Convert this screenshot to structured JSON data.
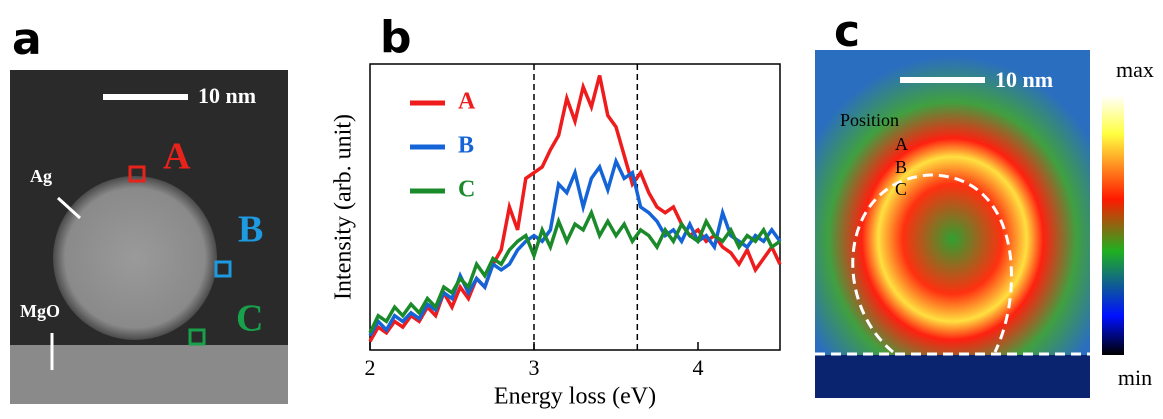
{
  "panel_a": {
    "label": "a",
    "scale_bar": "10 nm",
    "markers": [
      {
        "name": "A",
        "color": "#e8231c"
      },
      {
        "name": "B",
        "color": "#1e9be0"
      },
      {
        "name": "C",
        "color": "#18a04a"
      }
    ],
    "annotations": [
      "Ag",
      "MgO"
    ]
  },
  "chart_data": {
    "type": "line",
    "label": "b",
    "xlabel": "Energy loss (eV)",
    "ylabel": "Intensity (arb. unit)",
    "xlim": [
      2,
      4.5
    ],
    "xticks": [
      2,
      3,
      4
    ],
    "ylim": [
      0,
      1
    ],
    "vlines": [
      3.0,
      3.63
    ],
    "x": [
      2.0,
      2.05,
      2.1,
      2.15,
      2.2,
      2.25,
      2.3,
      2.35,
      2.4,
      2.45,
      2.5,
      2.55,
      2.6,
      2.65,
      2.7,
      2.75,
      2.8,
      2.85,
      2.9,
      2.95,
      3.0,
      3.05,
      3.1,
      3.15,
      3.2,
      3.25,
      3.3,
      3.35,
      3.4,
      3.45,
      3.5,
      3.55,
      3.6,
      3.65,
      3.7,
      3.75,
      3.8,
      3.85,
      3.9,
      3.95,
      4.0,
      4.05,
      4.1,
      4.15,
      4.2,
      4.25,
      4.3,
      4.35,
      4.4,
      4.45,
      4.5
    ],
    "series": [
      {
        "name": "A",
        "color": "#ee1c1c",
        "values": [
          0.03,
          0.08,
          0.06,
          0.1,
          0.08,
          0.12,
          0.1,
          0.15,
          0.12,
          0.2,
          0.15,
          0.22,
          0.18,
          0.25,
          0.22,
          0.3,
          0.35,
          0.5,
          0.42,
          0.6,
          0.62,
          0.64,
          0.7,
          0.75,
          0.88,
          0.8,
          0.92,
          0.85,
          0.96,
          0.82,
          0.78,
          0.68,
          0.58,
          0.62,
          0.55,
          0.5,
          0.48,
          0.5,
          0.44,
          0.4,
          0.42,
          0.38,
          0.4,
          0.36,
          0.34,
          0.3,
          0.35,
          0.28,
          0.32,
          0.36,
          0.3
        ]
      },
      {
        "name": "B",
        "color": "#1464d8",
        "values": [
          0.05,
          0.1,
          0.07,
          0.12,
          0.1,
          0.13,
          0.11,
          0.16,
          0.14,
          0.2,
          0.18,
          0.26,
          0.2,
          0.25,
          0.22,
          0.3,
          0.28,
          0.3,
          0.35,
          0.38,
          0.4,
          0.38,
          0.42,
          0.58,
          0.55,
          0.62,
          0.5,
          0.6,
          0.64,
          0.56,
          0.66,
          0.6,
          0.62,
          0.5,
          0.48,
          0.45,
          0.4,
          0.42,
          0.38,
          0.44,
          0.38,
          0.4,
          0.36,
          0.48,
          0.4,
          0.38,
          0.36,
          0.4,
          0.38,
          0.42,
          0.38
        ]
      },
      {
        "name": "C",
        "color": "#1a8a2a",
        "values": [
          0.06,
          0.12,
          0.1,
          0.15,
          0.12,
          0.16,
          0.13,
          0.18,
          0.15,
          0.22,
          0.2,
          0.25,
          0.22,
          0.3,
          0.26,
          0.32,
          0.3,
          0.35,
          0.38,
          0.4,
          0.33,
          0.42,
          0.36,
          0.45,
          0.38,
          0.44,
          0.42,
          0.48,
          0.4,
          0.45,
          0.4,
          0.44,
          0.38,
          0.42,
          0.4,
          0.36,
          0.42,
          0.38,
          0.44,
          0.4,
          0.38,
          0.45,
          0.4,
          0.38,
          0.42,
          0.36,
          0.4,
          0.38,
          0.42,
          0.36,
          0.38
        ]
      }
    ]
  },
  "panel_c": {
    "label": "c",
    "scale_bar": "10 nm",
    "overlay": [
      "Position",
      "A",
      "B",
      "C"
    ],
    "colorbar": [
      "max",
      "min"
    ]
  }
}
